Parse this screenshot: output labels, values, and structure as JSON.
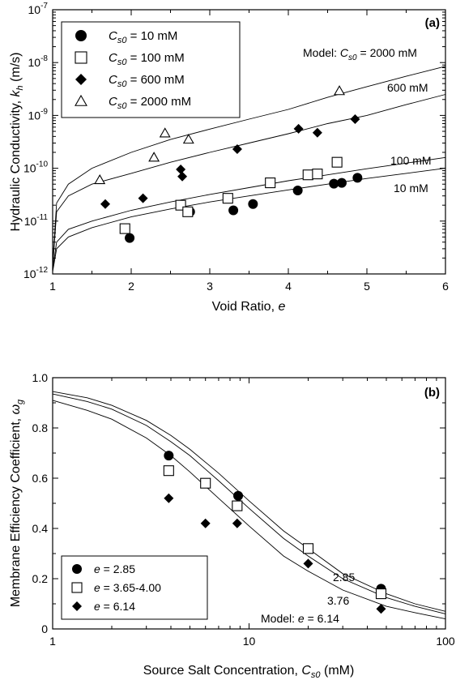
{
  "chart_data": [
    {
      "type": "scatter",
      "panel_label": "(a)",
      "xlabel": "Void Ratio, ",
      "xlabel_sym": "e",
      "ylabel": "Hydraulic Conductivity, ",
      "ylabel_sym": "k",
      "ylabel_sub": "h",
      "ylabel_unit": " (m/s)",
      "xlim": [
        1,
        6
      ],
      "ylim": [
        1e-12,
        1e-07
      ],
      "yscale": "log",
      "grid": false,
      "legend_position": "top-left",
      "x_ticks": [
        "1",
        "2",
        "3",
        "4",
        "5",
        "6"
      ],
      "y_ticks": [
        {
          "base": "10",
          "exp": "-12"
        },
        {
          "base": "10",
          "exp": "-11"
        },
        {
          "base": "10",
          "exp": "-10"
        },
        {
          "base": "10",
          "exp": "-9"
        },
        {
          "base": "10",
          "exp": "-8"
        },
        {
          "base": "10",
          "exp": "-7"
        }
      ],
      "series": [
        {
          "name_sym": "C",
          "name_sub": "s0",
          "name_val": " = 10 mM",
          "marker": "filled-circle",
          "points": [
            [
              1.98,
              4.8e-12
            ],
            [
              2.75,
              1.5e-11
            ],
            [
              3.3,
              1.6e-11
            ],
            [
              3.55,
              2.1e-11
            ],
            [
              4.12,
              3.8e-11
            ],
            [
              4.58,
              5.1e-11
            ],
            [
              4.68,
              5.3e-11
            ],
            [
              4.88,
              6.6e-11
            ]
          ]
        },
        {
          "name_sym": "C",
          "name_sub": "s0",
          "name_val": " = 100 mM",
          "marker": "open-square",
          "points": [
            [
              1.92,
              7.2e-12
            ],
            [
              2.63,
              2e-11
            ],
            [
              2.72,
              1.5e-11
            ],
            [
              3.23,
              2.7e-11
            ],
            [
              3.77,
              5.3e-11
            ],
            [
              4.25,
              7.5e-11
            ],
            [
              4.37,
              7.8e-11
            ],
            [
              4.62,
              1.3e-10
            ]
          ]
        },
        {
          "name_sym": "C",
          "name_sub": "s0",
          "name_val": " = 600 mM",
          "marker": "filled-diamond",
          "points": [
            [
              1.67,
              2.1e-11
            ],
            [
              2.15,
              2.7e-11
            ],
            [
              2.63,
              9.5e-11
            ],
            [
              2.65,
              7e-11
            ],
            [
              3.35,
              2.3e-10
            ],
            [
              4.13,
              5.6e-10
            ],
            [
              4.37,
              4.7e-10
            ],
            [
              4.85,
              8.5e-10
            ]
          ]
        },
        {
          "name_sym": "C",
          "name_sub": "s0",
          "name_val": " = 2000 mM",
          "marker": "open-triangle",
          "points": [
            [
              1.6,
              6e-11
            ],
            [
              2.29,
              1.6e-10
            ],
            [
              2.43,
              4.6e-10
            ],
            [
              2.73,
              3.5e-10
            ],
            [
              4.65,
              2.9e-09
            ]
          ]
        }
      ],
      "model_curves": [
        {
          "label_prefix": "Model: ",
          "label_sym": "C",
          "label_sub": "s0",
          "label_val": " = 2000 mM",
          "points": [
            [
              1.0,
              1.5e-12
            ],
            [
              1.05,
              2.2e-11
            ],
            [
              1.2,
              5e-11
            ],
            [
              1.5,
              1e-10
            ],
            [
              2.0,
              2e-10
            ],
            [
              2.5,
              3.5e-10
            ],
            [
              3.0,
              5.5e-10
            ],
            [
              3.5,
              8.5e-10
            ],
            [
              4.0,
              1.3e-09
            ],
            [
              4.5,
              2.2e-09
            ],
            [
              5.0,
              3.5e-09
            ],
            [
              5.5,
              5.5e-09
            ],
            [
              6.0,
              8.5e-09
            ]
          ]
        },
        {
          "label": "600 mM",
          "points": [
            [
              1.0,
              1.3e-12
            ],
            [
              1.05,
              1.5e-11
            ],
            [
              1.2,
              3e-11
            ],
            [
              1.5,
              5e-11
            ],
            [
              2.0,
              8e-11
            ],
            [
              2.5,
              1.3e-10
            ],
            [
              3.0,
              2e-10
            ],
            [
              3.5,
              3e-10
            ],
            [
              4.0,
              4.5e-10
            ],
            [
              4.5,
              7e-10
            ],
            [
              5.0,
              1e-09
            ],
            [
              5.5,
              1.6e-09
            ],
            [
              6.0,
              2.5e-09
            ]
          ]
        },
        {
          "label": "100 mM",
          "points": [
            [
              1.0,
              1.2e-12
            ],
            [
              1.05,
              4e-12
            ],
            [
              1.2,
              7e-12
            ],
            [
              1.5,
              1e-11
            ],
            [
              2.0,
              1.6e-11
            ],
            [
              2.5,
              2.3e-11
            ],
            [
              3.0,
              3.2e-11
            ],
            [
              3.5,
              4.3e-11
            ],
            [
              4.0,
              5.8e-11
            ],
            [
              4.5,
              7.5e-11
            ],
            [
              5.0,
              9.8e-11
            ],
            [
              5.5,
              1.25e-10
            ],
            [
              6.0,
              1.6e-10
            ]
          ]
        },
        {
          "label": "10 mM",
          "points": [
            [
              1.0,
              1.1e-12
            ],
            [
              1.05,
              3e-12
            ],
            [
              1.2,
              5e-12
            ],
            [
              1.5,
              7.5e-12
            ],
            [
              2.0,
              1.2e-11
            ],
            [
              2.5,
              1.7e-11
            ],
            [
              3.0,
              2.3e-11
            ],
            [
              3.5,
              3e-11
            ],
            [
              4.0,
              3.9e-11
            ],
            [
              4.5,
              5e-11
            ],
            [
              5.0,
              6.4e-11
            ],
            [
              5.5,
              8e-11
            ],
            [
              6.0,
              1e-10
            ]
          ]
        }
      ]
    },
    {
      "type": "scatter",
      "panel_label": "(b)",
      "xlabel": "Source Salt Concentration, ",
      "xlabel_sym": "C",
      "xlabel_sub": "s0",
      "xlabel_unit": " (mM)",
      "ylabel": "Membrane Efficiency Coefficient, ",
      "ylabel_sym": "ω",
      "ylabel_sub": "g",
      "xlim": [
        1,
        100
      ],
      "xscale": "log",
      "ylim": [
        0,
        1.0
      ],
      "grid": false,
      "legend_position": "bottom-left",
      "x_ticks": [
        "1",
        "10",
        "100"
      ],
      "y_ticks": [
        "0",
        "0.2",
        "0.4",
        "0.6",
        "0.8",
        "1.0"
      ],
      "series": [
        {
          "name_sym": "e",
          "name_val": " = 2.85",
          "marker": "filled-circle",
          "points": [
            [
              3.9,
              0.69
            ],
            [
              6.0,
              0.58
            ],
            [
              8.8,
              0.53
            ],
            [
              47,
              0.16
            ]
          ]
        },
        {
          "name_sym": "e",
          "name_val": " = 3.65-4.00",
          "marker": "open-square",
          "points": [
            [
              3.9,
              0.63
            ],
            [
              6.0,
              0.58
            ],
            [
              8.7,
              0.49
            ],
            [
              20,
              0.32
            ],
            [
              47,
              0.14
            ]
          ]
        },
        {
          "name_sym": "e",
          "name_val": " = 6.14",
          "marker": "filled-diamond",
          "points": [
            [
              3.9,
              0.52
            ],
            [
              6.0,
              0.42
            ],
            [
              8.7,
              0.42
            ],
            [
              20,
              0.26
            ],
            [
              47,
              0.08
            ]
          ]
        }
      ],
      "model_curves": [
        {
          "label": "2.85",
          "points": [
            [
              1,
              0.945
            ],
            [
              1.5,
              0.92
            ],
            [
              2,
              0.89
            ],
            [
              3,
              0.83
            ],
            [
              4,
              0.77
            ],
            [
              5,
              0.715
            ],
            [
              7,
              0.62
            ],
            [
              10,
              0.51
            ],
            [
              15,
              0.39
            ],
            [
              20,
              0.32
            ],
            [
              30,
              0.22
            ],
            [
              50,
              0.14
            ],
            [
              70,
              0.1
            ],
            [
              100,
              0.07
            ]
          ]
        },
        {
          "label": "3.76",
          "points": [
            [
              1,
              0.935
            ],
            [
              1.5,
              0.905
            ],
            [
              2,
              0.875
            ],
            [
              3,
              0.81
            ],
            [
              4,
              0.745
            ],
            [
              5,
              0.69
            ],
            [
              7,
              0.59
            ],
            [
              10,
              0.48
            ],
            [
              15,
              0.36
            ],
            [
              20,
              0.29
            ],
            [
              30,
              0.2
            ],
            [
              50,
              0.125
            ],
            [
              70,
              0.09
            ],
            [
              100,
              0.06
            ]
          ]
        },
        {
          "label_prefix": "Model: ",
          "label_sym": "e",
          "label_val": " = 6.14",
          "points": [
            [
              1,
              0.91
            ],
            [
              1.5,
              0.87
            ],
            [
              2,
              0.835
            ],
            [
              3,
              0.76
            ],
            [
              4,
              0.69
            ],
            [
              5,
              0.625
            ],
            [
              7,
              0.52
            ],
            [
              10,
              0.41
            ],
            [
              15,
              0.29
            ],
            [
              20,
              0.23
            ],
            [
              30,
              0.155
            ],
            [
              50,
              0.09
            ],
            [
              70,
              0.065
            ],
            [
              100,
              0.04
            ]
          ]
        }
      ]
    }
  ]
}
